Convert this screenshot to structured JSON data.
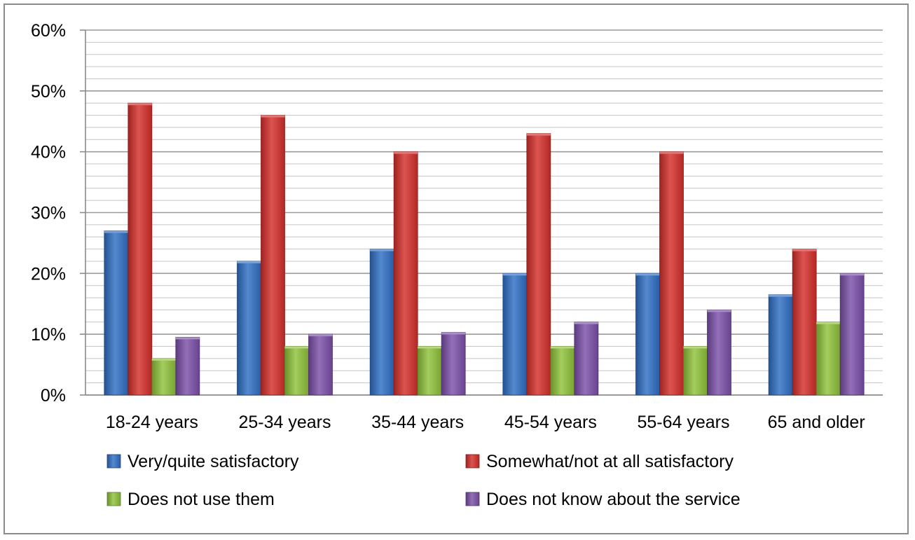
{
  "chart_data": {
    "type": "bar",
    "title": "",
    "xlabel": "",
    "ylabel": "",
    "ylim": [
      0,
      60
    ],
    "y_ticks": [
      0,
      10,
      20,
      30,
      40,
      50,
      60
    ],
    "y_tick_labels": [
      "0%",
      "10%",
      "20%",
      "30%",
      "40%",
      "50%",
      "60%"
    ],
    "y_minor_step": 2,
    "grid": true,
    "legend_position": "bottom",
    "categories": [
      "18-24 years",
      "25-34 years",
      "35-44 years",
      "45-54 years",
      "55-64 years",
      "65 and older"
    ],
    "series": [
      {
        "name": "Very/quite satisfactory",
        "color": "#2f6fc4",
        "values": [
          27,
          22,
          24,
          20,
          20,
          16.5
        ]
      },
      {
        "name": "Somewhat/not at all satisfactory",
        "color": "#d42e2a",
        "values": [
          48,
          46,
          40,
          43,
          40,
          24
        ]
      },
      {
        "name": "Does not use them",
        "color": "#8fc23a",
        "values": [
          6,
          8,
          8,
          8,
          8,
          12
        ]
      },
      {
        "name": "Does not know about the service",
        "color": "#7b4fa8",
        "values": [
          9.5,
          10,
          10.3,
          12,
          14,
          20
        ]
      }
    ]
  }
}
